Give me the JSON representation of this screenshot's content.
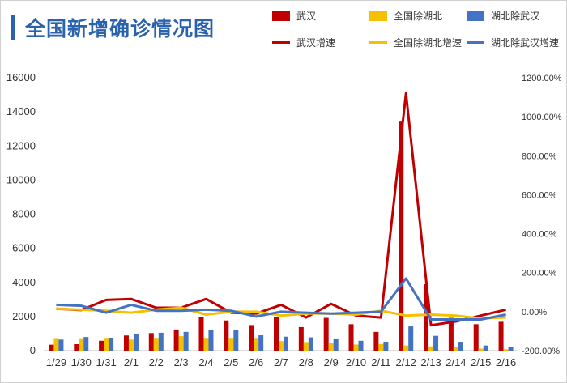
{
  "title": "全国新增确诊情况图",
  "colors": {
    "title": "#2a62ad",
    "wuhan": "#c00000",
    "other_hubei": "#f5c000",
    "outside_hubei": "#4472c4"
  },
  "legend": [
    {
      "name": "武汉",
      "kind": "bar",
      "color": "#c00000"
    },
    {
      "name": "全国除湖北",
      "kind": "bar",
      "color": "#f5c000"
    },
    {
      "name": "湖北除武汉",
      "kind": "bar",
      "color": "#4472c4"
    },
    {
      "name": "武汉增速",
      "kind": "line",
      "color": "#c00000"
    },
    {
      "name": "全国除湖北增速",
      "kind": "line",
      "color": "#f5c000"
    },
    {
      "name": "湖北除武汉增速",
      "kind": "line",
      "color": "#4472c4"
    }
  ],
  "chart_data": {
    "type": "bar",
    "title": "全国新增确诊情况图",
    "categories": [
      "1/29",
      "1/30",
      "1/31",
      "2/1",
      "2/2",
      "2/3",
      "2/4",
      "2/5",
      "2/6",
      "2/7",
      "2/8",
      "2/9",
      "2/10",
      "2/11",
      "2/12",
      "2/13",
      "2/14",
      "2/15",
      "2/16"
    ],
    "series": [
      {
        "name": "武汉",
        "type": "bar",
        "axis": "left",
        "color": "#c00000",
        "values": [
          350,
          380,
          580,
          890,
          1030,
          1240,
          1970,
          1770,
          1500,
          1990,
          1380,
          1920,
          1550,
          1100,
          13430,
          3900,
          1920,
          1550,
          1690
        ]
      },
      {
        "name": "全国除湖北",
        "type": "bar",
        "axis": "left",
        "color": "#f5c000",
        "values": [
          690,
          680,
          700,
          650,
          700,
          850,
          700,
          700,
          700,
          560,
          500,
          440,
          360,
          390,
          300,
          250,
          200,
          120,
          80
        ]
      },
      {
        "name": "湖北除武汉",
        "type": "bar",
        "axis": "left",
        "color": "#4472c4",
        "values": [
          650,
          800,
          760,
          1000,
          1050,
          1100,
          1200,
          1230,
          900,
          820,
          780,
          670,
          580,
          520,
          1420,
          870,
          520,
          300,
          200
        ]
      },
      {
        "name": "武汉增速",
        "type": "line",
        "axis": "right",
        "color": "#c00000",
        "values": [
          15,
          8,
          60,
          65,
          20,
          20,
          65,
          -5,
          -10,
          35,
          -30,
          40,
          -20,
          -30,
          1120,
          -70,
          -50,
          -20,
          10
        ]
      },
      {
        "name": "全国除湖北增速",
        "type": "line",
        "axis": "right",
        "color": "#f5c000",
        "values": [
          15,
          10,
          5,
          -5,
          10,
          20,
          -15,
          0,
          0,
          -20,
          -10,
          -10,
          -15,
          5,
          -20,
          -15,
          -20,
          -35,
          -30
        ]
      },
      {
        "name": "湖北除武汉增速",
        "type": "line",
        "axis": "right",
        "color": "#4472c4",
        "values": [
          35,
          30,
          -5,
          35,
          5,
          5,
          10,
          5,
          -25,
          0,
          -5,
          -10,
          -5,
          0,
          170,
          -40,
          -40,
          -40,
          -15
        ]
      }
    ],
    "left_axis": {
      "min": 0,
      "max": 16000,
      "step": 2000,
      "ticks": [
        "0",
        "2000",
        "4000",
        "6000",
        "8000",
        "10000",
        "12000",
        "14000",
        "16000"
      ]
    },
    "right_axis": {
      "min": -200,
      "max": 1200,
      "step": 200,
      "ticks": [
        "-200.00%",
        "0.00%",
        "200.00%",
        "400.00%",
        "600.00%",
        "800.00%",
        "1000.00%",
        "1200.00%"
      ]
    },
    "grid": false,
    "legend_position": "top-right"
  }
}
